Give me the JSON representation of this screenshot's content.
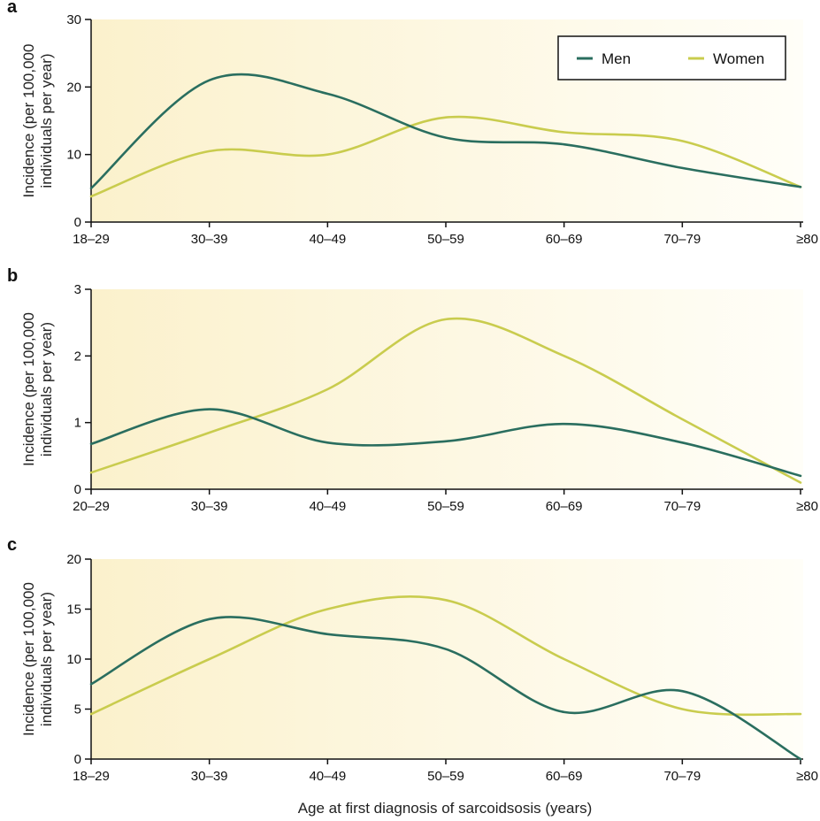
{
  "colors": {
    "men": "#2a6e5f",
    "women": "#c9cc4e",
    "plot_bg_start": "#fbf1cc",
    "plot_bg_end": "#fffef8",
    "axis": "#111111"
  },
  "legend": {
    "men": "Men",
    "women": "Women"
  },
  "xlabel": "Age at first diagnosis of sarcoidsosis (years)",
  "chart_data": [
    {
      "type": "line",
      "panel": "a",
      "categories": [
        "18–29",
        "30–39",
        "40–49",
        "50–59",
        "60–69",
        "70–79",
        "≥80"
      ],
      "ylabel": "Incidence (per 100,000 individuals per year)",
      "ylim": [
        0,
        30
      ],
      "yticks": [
        0,
        10,
        20,
        30
      ],
      "series": [
        {
          "name": "Men",
          "values": [
            5,
            21,
            19,
            12.5,
            11.5,
            8,
            5.2
          ]
        },
        {
          "name": "Women",
          "values": [
            3.8,
            10.5,
            10,
            15.5,
            13.3,
            12,
            5.2
          ]
        }
      ]
    },
    {
      "type": "line",
      "panel": "b",
      "categories": [
        "20–29",
        "30–39",
        "40–49",
        "50–59",
        "60–69",
        "70–79",
        "≥80"
      ],
      "ylabel": "Incidence (per 100,000 individuals per year)",
      "ylim": [
        0,
        3
      ],
      "yticks": [
        0,
        1,
        2,
        3
      ],
      "series": [
        {
          "name": "Men",
          "values": [
            0.68,
            1.2,
            0.7,
            0.72,
            0.98,
            0.7,
            0.2
          ]
        },
        {
          "name": "Women",
          "values": [
            0.25,
            0.85,
            1.5,
            2.55,
            2.0,
            1.05,
            0.1
          ]
        }
      ]
    },
    {
      "type": "line",
      "panel": "c",
      "categories": [
        "18–29",
        "30–39",
        "40–49",
        "50–59",
        "60–69",
        "70–79",
        "≥80"
      ],
      "ylabel": "Incidence (per 100,000 individuals per year)",
      "ylim": [
        0,
        20
      ],
      "yticks": [
        0,
        5,
        10,
        15,
        20
      ],
      "series": [
        {
          "name": "Men",
          "values": [
            7.5,
            14,
            12.5,
            11,
            4.7,
            6.8,
            0
          ]
        },
        {
          "name": "Women",
          "values": [
            4.5,
            10,
            15,
            15.9,
            10,
            5,
            4.5
          ]
        }
      ]
    }
  ]
}
